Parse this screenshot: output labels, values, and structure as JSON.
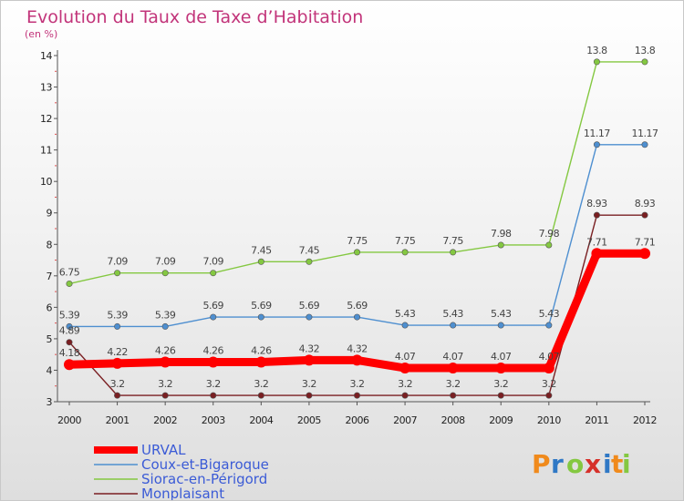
{
  "chart_data": {
    "type": "line",
    "title": "Evolution du Taux de Taxe d’Habitation",
    "unit_label": "(en %)",
    "xlabel": "",
    "ylabel": "",
    "x": [
      "2000",
      "2001",
      "2002",
      "2003",
      "2004",
      "2005",
      "2006",
      "2007",
      "2008",
      "2009",
      "2010",
      "2011",
      "2012"
    ],
    "ylim": [
      3,
      14
    ],
    "yticks": [
      3,
      4,
      5,
      6,
      7,
      8,
      9,
      10,
      11,
      12,
      13,
      14
    ],
    "grid": false,
    "legend_position": "bottom-left",
    "series": [
      {
        "name": "URVAL",
        "color": "#ff0000",
        "values": [
          4.18,
          4.22,
          4.26,
          4.26,
          4.26,
          4.32,
          4.32,
          4.07,
          4.07,
          4.07,
          4.07,
          7.71,
          7.71
        ],
        "labels": [
          "4.18",
          "4.22",
          "4.26",
          "4.26",
          "4.26",
          "4.32",
          "4.32",
          "4.07",
          "4.07",
          "4.07",
          "4.07",
          "7.71",
          "7.71"
        ]
      },
      {
        "name": "Coux-et-Bigaroque",
        "color": "#4e8fd0",
        "values": [
          5.39,
          5.39,
          5.39,
          5.69,
          5.69,
          5.69,
          5.69,
          5.43,
          5.43,
          5.43,
          5.43,
          11.17,
          11.17
        ],
        "labels": [
          "5.39",
          "5.39",
          "5.39",
          "5.69",
          "5.69",
          "5.69",
          "5.69",
          "5.43",
          "5.43",
          "5.43",
          "5.43",
          "11.17",
          "11.17"
        ]
      },
      {
        "name": "Siorac-en-Périgord",
        "color": "#84c841",
        "values": [
          6.75,
          7.09,
          7.09,
          7.09,
          7.45,
          7.45,
          7.75,
          7.75,
          7.75,
          7.98,
          7.98,
          13.8,
          13.8
        ],
        "labels": [
          "6.75",
          "7.09",
          "7.09",
          "7.09",
          "7.45",
          "7.45",
          "7.75",
          "7.75",
          "7.75",
          "7.98",
          "7.98",
          "13.8",
          "13.8"
        ]
      },
      {
        "name": "Monplaisant",
        "color": "#7a1f22",
        "values": [
          4.89,
          3.2,
          3.2,
          3.2,
          3.2,
          3.2,
          3.2,
          3.2,
          3.2,
          3.2,
          3.2,
          8.93,
          8.93
        ],
        "labels": [
          "4.89",
          "3.2",
          "3.2",
          "3.2",
          "3.2",
          "3.2",
          "3.2",
          "3.2",
          "3.2",
          "3.2",
          "3.2",
          "8.93",
          "8.93"
        ]
      }
    ]
  },
  "logo": {
    "text": "Proxiti",
    "letters": [
      "P",
      "r",
      "o",
      "x",
      "i",
      "t",
      "i"
    ],
    "colors": [
      "#f08a1c",
      "#2f78c5",
      "#84c841",
      "#d6302a",
      "#2f78c5",
      "#f08a1c",
      "#84c841"
    ]
  }
}
